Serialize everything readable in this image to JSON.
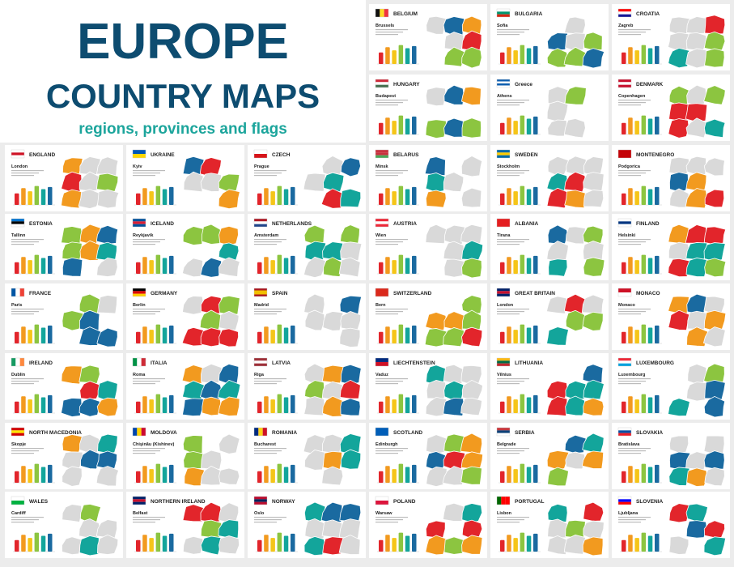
{
  "header": {
    "title": "EUROPE",
    "title2": "COUNTRY MAPS",
    "subtitle": "regions, provinces and flags"
  },
  "cards": [
    {
      "country": "BELGIUM",
      "capital": "Brussels",
      "flag": [
        "#111111",
        "#fdda24",
        "#ef3340"
      ],
      "stripes": "vertical"
    },
    {
      "country": "BULGARIA",
      "capital": "Sofia",
      "flag": [
        "#ffffff",
        "#00966e",
        "#d62612"
      ]
    },
    {
      "country": "CROATIA",
      "capital": "Zagreb",
      "flag": [
        "#ff0000",
        "#ffffff",
        "#171796"
      ]
    },
    {
      "country": "HUNGARY",
      "capital": "Budapest",
      "flag": [
        "#ce2939",
        "#ffffff",
        "#477050"
      ]
    },
    {
      "country": "Greece",
      "capital": "Athens",
      "flag": [
        "#0d5eaf",
        "#ffffff",
        "#0d5eaf",
        "#ffffff"
      ]
    },
    {
      "country": "DENMARK",
      "capital": "Copenhagen",
      "flag": [
        "#c8102e",
        "#ffffff",
        "#c8102e"
      ]
    },
    {
      "country": "ENGLAND",
      "capital": "London",
      "flag": [
        "#ffffff",
        "#ce1124",
        "#ffffff"
      ]
    },
    {
      "country": "UKRAINE",
      "capital": "Kyiv",
      "flag": [
        "#0057b7",
        "#ffd700"
      ]
    },
    {
      "country": "CZECH",
      "capital": "Prague",
      "flag": [
        "#ffffff",
        "#d7141a"
      ]
    },
    {
      "country": "BELARUS",
      "capital": "Minsk",
      "flag": [
        "#c8313e",
        "#c8313e",
        "#4aa657"
      ]
    },
    {
      "country": "SWEDEN",
      "capital": "Stockholm",
      "flag": [
        "#006aa7",
        "#fecc00",
        "#006aa7"
      ]
    },
    {
      "country": "MONTENEGRO",
      "capital": "Podgorica",
      "flag": [
        "#c40308"
      ]
    },
    {
      "country": "ESTONIA",
      "capital": "Tallinn",
      "flag": [
        "#0072ce",
        "#000000",
        "#ffffff"
      ]
    },
    {
      "country": "ICELAND",
      "capital": "Reykjavik",
      "flag": [
        "#02529c",
        "#dc1e35",
        "#02529c"
      ]
    },
    {
      "country": "NETHERLANDS",
      "capital": "Amsterdam",
      "flag": [
        "#ae1c28",
        "#ffffff",
        "#21468b"
      ]
    },
    {
      "country": "AUSTRIA",
      "capital": "Wien",
      "flag": [
        "#ed2939",
        "#ffffff",
        "#ed2939"
      ]
    },
    {
      "country": "ALBANIA",
      "capital": "Tirana",
      "flag": [
        "#e41e20"
      ]
    },
    {
      "country": "FINLAND",
      "capital": "Helsinki",
      "flag": [
        "#ffffff",
        "#003580",
        "#ffffff"
      ]
    },
    {
      "country": "FRANCE",
      "capital": "Paris",
      "flag": [
        "#0055a4",
        "#ffffff",
        "#ef4135"
      ],
      "stripes": "vertical"
    },
    {
      "country": "GERMANY",
      "capital": "Berlin",
      "flag": [
        "#000000",
        "#dd0000",
        "#ffce00"
      ]
    },
    {
      "country": "SPAIN",
      "capital": "Madrid",
      "flag": [
        "#aa151b",
        "#f1bf00",
        "#f1bf00",
        "#aa151b"
      ]
    },
    {
      "country": "SWITZERLAND",
      "capital": "Bern",
      "flag": [
        "#da291c"
      ]
    },
    {
      "country": "GREAT BRITAIN",
      "capital": "London",
      "flag": [
        "#012169",
        "#c8102e",
        "#012169"
      ]
    },
    {
      "country": "MONACO",
      "capital": "Monaco",
      "flag": [
        "#ce1126",
        "#ffffff"
      ]
    },
    {
      "country": "IRELAND",
      "capital": "Dublin",
      "flag": [
        "#169b62",
        "#ffffff",
        "#ff883e"
      ],
      "stripes": "vertical"
    },
    {
      "country": "ITALIA",
      "capital": "Roma",
      "flag": [
        "#009246",
        "#ffffff",
        "#ce2b37"
      ],
      "stripes": "vertical"
    },
    {
      "country": "LATVIA",
      "capital": "Riga",
      "flag": [
        "#9e3039",
        "#ffffff",
        "#9e3039"
      ]
    },
    {
      "country": "LIECHTENSTEIN",
      "capital": "Vaduz",
      "flag": [
        "#002b7f",
        "#ce1126"
      ]
    },
    {
      "country": "LITHUANIA",
      "capital": "Vilnius",
      "flag": [
        "#fdb913",
        "#006a44",
        "#c1272d"
      ]
    },
    {
      "country": "LUXEMBOURG",
      "capital": "Luxembourg",
      "flag": [
        "#ed2939",
        "#ffffff",
        "#00a1de"
      ]
    },
    {
      "country": "NORTH MACEDONIA",
      "capital": "Skopje",
      "flag": [
        "#d20000",
        "#ffe600",
        "#d20000"
      ]
    },
    {
      "country": "MOLDOVA",
      "capital": "Chişinău (Kishinev)",
      "flag": [
        "#0046ae",
        "#ffd200",
        "#cc092f"
      ],
      "stripes": "vertical"
    },
    {
      "country": "ROMANIA",
      "capital": "Bucharest",
      "flag": [
        "#002b7f",
        "#fcd116",
        "#ce1126"
      ],
      "stripes": "vertical"
    },
    {
      "country": "SCOTLAND",
      "capital": "Edinburgh",
      "flag": [
        "#005eb8"
      ]
    },
    {
      "country": "SERBIA",
      "capital": "Belgrade",
      "flag": [
        "#c6363c",
        "#0c4076",
        "#ffffff"
      ]
    },
    {
      "country": "SLOVAKIA",
      "capital": "Bratislava",
      "flag": [
        "#ffffff",
        "#0b4ea2",
        "#ee1c25"
      ]
    },
    {
      "country": "WALES",
      "capital": "Cardiff",
      "flag": [
        "#ffffff",
        "#00b140"
      ]
    },
    {
      "country": "NORTHERN IRELAND",
      "capital": "Belfast",
      "flag": [
        "#012169",
        "#c8102e",
        "#012169"
      ]
    },
    {
      "country": "NORWAY",
      "capital": "Oslo",
      "flag": [
        "#ba0c2f",
        "#00205b",
        "#ba0c2f"
      ]
    },
    {
      "country": "POLAND",
      "capital": "Warsaw",
      "flag": [
        "#ffffff",
        "#dc143c"
      ]
    },
    {
      "country": "PORTUGAL",
      "capital": "Lisbon",
      "flag": [
        "#006600",
        "#ff0000",
        "#ff0000"
      ],
      "stripes": "vertical"
    },
    {
      "country": "SLOVENIA",
      "capital": "Ljubljana",
      "flag": [
        "#ffffff",
        "#0000ff",
        "#ff0000"
      ]
    }
  ]
}
